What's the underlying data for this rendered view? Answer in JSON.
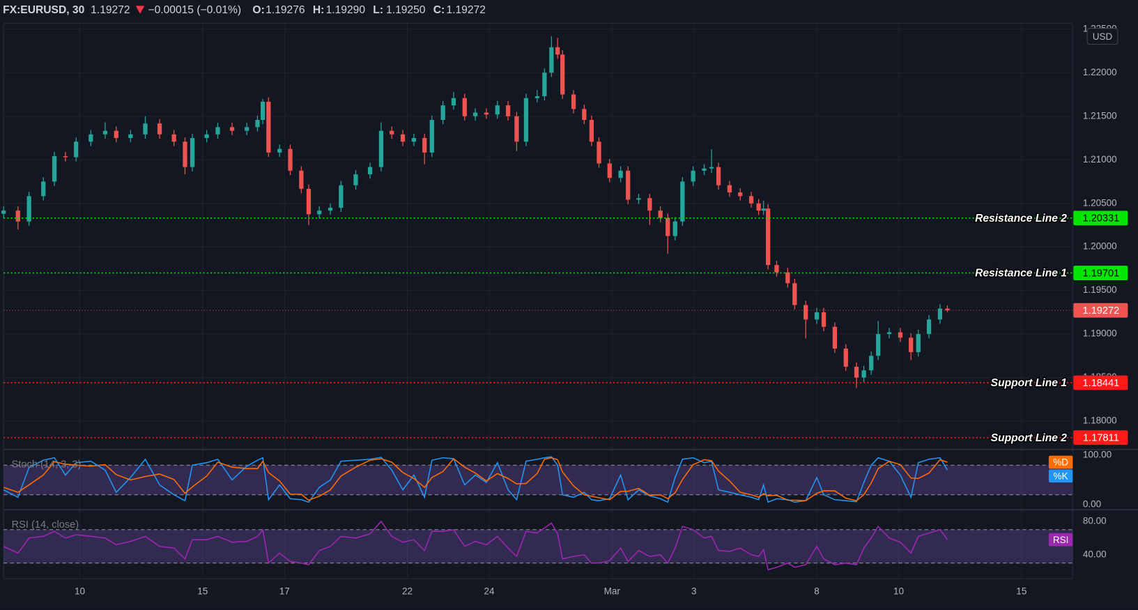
{
  "chart_data": [
    {
      "type": "candlestick",
      "title": "FX:EURUSD, 30",
      "last": 1.19272,
      "change": "−0.00015 (−0.01%)",
      "ohlc": [
        {
          "key": "O:",
          "value": 1.19276
        },
        {
          "key": "H:",
          "value": {
            "value": 1.1929,
            "label": "1.19290"
          }
        },
        {
          "key": "L:",
          "value": {
            "value": 1.1925,
            "label": "1.19250"
          }
        },
        {
          "key": "C:",
          "value": 1.19272
        }
      ],
      "currency": "USD",
      "up_color": "#26a69a",
      "down_color": "#ef5350",
      "grid": true,
      "xlim": [
        -1.86,
        24.25
      ],
      "xticks": [
        {
          "value": 0,
          "label": "10"
        },
        {
          "value": 3,
          "label": "15"
        },
        {
          "value": 5,
          "label": "17"
        },
        {
          "value": 8,
          "label": "22"
        },
        {
          "value": 10,
          "label": "24"
        },
        {
          "value": 13,
          "label": "Mar"
        },
        {
          "value": 15,
          "label": "3"
        },
        {
          "value": 18,
          "label": "8"
        },
        {
          "value": 20,
          "label": "10"
        },
        {
          "value": 23,
          "label": "15"
        }
      ],
      "ylim": [
        1.17683,
        1.22567
      ],
      "yticks": [
        {
          "value": 1.18,
          "label": "1.18000"
        },
        {
          "value": 1.185,
          "label": "1.18500"
        },
        {
          "value": 1.19,
          "label": "1.19000"
        },
        {
          "value": 1.195,
          "label": "1.19500"
        },
        {
          "value": 1.2,
          "label": "1.20000"
        },
        {
          "value": 1.205,
          "label": "1.20500"
        },
        {
          "value": 1.21,
          "label": "1.21000"
        },
        {
          "value": 1.215,
          "label": "1.21500"
        },
        {
          "value": 1.22,
          "label": "1.22000"
        },
        {
          "value": 1.225,
          "label": "1.22500"
        }
      ],
      "price_lines": [
        {
          "name": "Resistance Line 2",
          "value": 1.20331,
          "color": "#00e600",
          "label_color": "#000000"
        },
        {
          "name": "Resistance Line 1",
          "value": 1.19701,
          "color": "#00e600",
          "label_color": "#000000"
        },
        {
          "value": 1.19272,
          "color": "#f05350",
          "label_color": "#ffffff"
        },
        {
          "name": "Support Line 1",
          "value": 1.18441,
          "color": "#ff1a1a",
          "label_color": "#ffffff"
        },
        {
          "name": "Support Line 2",
          "value": 1.17811,
          "color": "#ff1a1a",
          "label_color": "#ffffff"
        }
      ],
      "x": [
        -1.86,
        -1.51,
        -1.24,
        -0.89,
        -0.62,
        -0.35,
        -0.09,
        0.27,
        0.62,
        0.89,
        1.24,
        1.6,
        1.95,
        2.3,
        2.57,
        2.75,
        3.1,
        3.37,
        3.72,
        4.08,
        4.34,
        4.47,
        4.61,
        4.88,
        5.14,
        5.41,
        5.59,
        5.85,
        6.12,
        6.38,
        6.74,
        7.09,
        7.36,
        7.62,
        7.89,
        8.16,
        8.42,
        8.6,
        8.87,
        9.13,
        9.4,
        9.66,
        9.93,
        10.2,
        10.46,
        10.67,
        10.9,
        11.17,
        11.35,
        11.52,
        11.67,
        11.79,
        12.06,
        12.32,
        12.5,
        12.68,
        12.94,
        13.21,
        13.39,
        13.65,
        13.92,
        14.18,
        14.36,
        14.54,
        14.72,
        14.98,
        15.25,
        15.43,
        15.6,
        15.87,
        16.13,
        16.4,
        16.58,
        16.7,
        16.81,
        17.02,
        17.29,
        17.46,
        17.73,
        18.0,
        18.17,
        18.44,
        18.71,
        18.97,
        19.15,
        19.33,
        19.5,
        19.77,
        20.04,
        20.3,
        20.48,
        20.74,
        21.01,
        21.19
      ],
      "open": [
        1.2038,
        1.20417,
        1.20292,
        1.20583,
        1.2075,
        1.21042,
        1.2103,
        1.21208,
        1.21292,
        1.21333,
        1.2125,
        1.21292,
        1.21417,
        1.21292,
        1.21208,
        1.20917,
        1.2125,
        1.21292,
        1.21375,
        1.21333,
        1.21375,
        1.21458,
        1.21667,
        1.21083,
        1.21125,
        1.20875,
        1.20667,
        1.20375,
        1.20417,
        1.2045,
        1.20708,
        1.20833,
        1.20917,
        1.21333,
        1.21292,
        1.21208,
        1.2125,
        1.21083,
        1.21458,
        1.21625,
        1.21708,
        1.215,
        1.21542,
        1.2152,
        1.21625,
        1.215,
        1.21208,
        1.21708,
        1.2173,
        1.22,
        1.22292,
        1.22208,
        1.2175,
        1.21583,
        1.21458,
        1.21208,
        1.20958,
        1.20792,
        1.20875,
        1.20542,
        1.2056,
        1.20417,
        1.20333,
        1.20125,
        1.20292,
        1.2075,
        1.20875,
        1.209,
        1.20917,
        1.20708,
        1.20625,
        1.20583,
        1.205,
        1.20417,
        1.2044,
        1.19792,
        1.19708,
        1.19583,
        1.19333,
        1.19167,
        1.1925,
        1.19083,
        1.18833,
        1.18625,
        1.185,
        1.18583,
        1.1875,
        1.19,
        1.1902,
        1.18958,
        1.18792,
        1.19,
        1.19167,
        1.19292
      ],
      "high": [
        1.20467,
        1.20467,
        1.20633,
        1.208,
        1.21092,
        1.21092,
        1.21258,
        1.21342,
        1.2143,
        1.21383,
        1.21342,
        1.215,
        1.21467,
        1.21342,
        1.21258,
        1.213,
        1.21342,
        1.21425,
        1.21425,
        1.21425,
        1.21508,
        1.217,
        1.21717,
        1.21175,
        1.21175,
        1.20925,
        1.20717,
        1.20467,
        1.205,
        1.20758,
        1.20883,
        1.20967,
        1.2143,
        1.21383,
        1.21342,
        1.213,
        1.213,
        1.21508,
        1.21675,
        1.2178,
        1.21758,
        1.21592,
        1.21592,
        1.21675,
        1.21675,
        1.2155,
        1.21758,
        1.218,
        1.2205,
        1.2242,
        1.224,
        1.22258,
        1.218,
        1.21633,
        1.21508,
        1.21258,
        1.21008,
        1.20925,
        1.20925,
        1.2061,
        1.2061,
        1.20467,
        1.20383,
        1.20342,
        1.208,
        1.20925,
        1.2095,
        1.2112,
        1.20967,
        1.20758,
        1.20675,
        1.20633,
        1.2055,
        1.2053,
        1.2049,
        1.19842,
        1.19758,
        1.19633,
        1.19383,
        1.193,
        1.193,
        1.19133,
        1.18883,
        1.18675,
        1.18633,
        1.188,
        1.1915,
        1.1907,
        1.1907,
        1.19008,
        1.1905,
        1.19217,
        1.19342,
        1.1933
      ],
      "low": [
        1.2033,
        1.202,
        1.20242,
        1.20533,
        1.207,
        1.2098,
        1.2098,
        1.21158,
        1.21242,
        1.212,
        1.212,
        1.21242,
        1.21242,
        1.21158,
        1.20833,
        1.20867,
        1.212,
        1.21242,
        1.21283,
        1.21283,
        1.21325,
        1.21408,
        1.21033,
        1.21033,
        1.20825,
        1.20617,
        1.2025,
        1.20325,
        1.20367,
        1.204,
        1.20658,
        1.20783,
        1.20867,
        1.21242,
        1.21158,
        1.21158,
        1.2095,
        1.21033,
        1.21408,
        1.21575,
        1.2145,
        1.2145,
        1.2147,
        1.2147,
        1.2145,
        1.211,
        1.21158,
        1.21658,
        1.2168,
        1.2195,
        1.22158,
        1.217,
        1.21533,
        1.21408,
        1.21158,
        1.20908,
        1.20742,
        1.20742,
        1.20492,
        1.20492,
        1.2025,
        1.20283,
        1.1992,
        1.20075,
        1.20242,
        1.207,
        1.20825,
        1.2085,
        1.20658,
        1.20575,
        1.20533,
        1.2045,
        1.20367,
        1.20367,
        1.19742,
        1.19658,
        1.19533,
        1.19283,
        1.1895,
        1.19117,
        1.19033,
        1.18783,
        1.18575,
        1.1838,
        1.1845,
        1.18533,
        1.187,
        1.1895,
        1.18908,
        1.187,
        1.18742,
        1.1895,
        1.19117,
        1.1925
      ],
      "close": [
        1.20417,
        1.20292,
        1.20583,
        1.2075,
        1.21042,
        1.2103,
        1.21208,
        1.21292,
        1.21333,
        1.2125,
        1.21292,
        1.21417,
        1.21292,
        1.21208,
        1.20917,
        1.2125,
        1.21292,
        1.21375,
        1.21333,
        1.21375,
        1.21458,
        1.21667,
        1.21083,
        1.21125,
        1.20875,
        1.20667,
        1.20375,
        1.20417,
        1.2045,
        1.20708,
        1.20833,
        1.20917,
        1.21333,
        1.21292,
        1.21208,
        1.2125,
        1.21083,
        1.21458,
        1.21625,
        1.21708,
        1.215,
        1.21542,
        1.2152,
        1.21625,
        1.215,
        1.21208,
        1.21708,
        1.2173,
        1.22,
        1.22292,
        1.22208,
        1.2175,
        1.21583,
        1.21458,
        1.21208,
        1.20958,
        1.20792,
        1.20875,
        1.20542,
        1.2056,
        1.20417,
        1.20333,
        1.20125,
        1.20292,
        1.2075,
        1.20875,
        1.209,
        1.20917,
        1.20708,
        1.20625,
        1.20583,
        1.205,
        1.20417,
        1.2044,
        1.19792,
        1.19708,
        1.19583,
        1.19333,
        1.19167,
        1.1925,
        1.19083,
        1.18833,
        1.18625,
        1.185,
        1.18583,
        1.1875,
        1.19,
        1.1902,
        1.18958,
        1.18792,
        1.19,
        1.19167,
        1.19292,
        1.19272
      ]
    },
    {
      "type": "line",
      "title": "Stoch (14, 3, 3)",
      "grid": false,
      "ylim": [
        -7.4,
        110.3
      ],
      "yticks": [
        {
          "value": 0,
          "label": "0.00"
        },
        {
          "value": 100,
          "label": "100.00"
        }
      ],
      "bands": [
        20,
        80
      ],
      "band_color": "#7e57c2",
      "series": [
        {
          "name": "%K",
          "color": "#2196f3",
          "values": [
            30,
            15,
            75,
            90,
            95,
            60,
            85,
            88,
            70,
            25,
            55,
            92,
            40,
            20,
            8,
            80,
            85,
            92,
            50,
            78,
            90,
            95,
            10,
            40,
            12,
            10,
            5,
            35,
            50,
            88,
            90,
            92,
            96,
            70,
            30,
            60,
            15,
            90,
            95,
            93,
            40,
            60,
            45,
            85,
            30,
            10,
            88,
            92,
            95,
            97,
            80,
            20,
            15,
            25,
            10,
            8,
            12,
            60,
            10,
            30,
            18,
            12,
            5,
            55,
            92,
            95,
            85,
            88,
            30,
            25,
            20,
            15,
            10,
            40,
            5,
            12,
            10,
            5,
            8,
            55,
            20,
            10,
            8,
            6,
            45,
            80,
            95,
            88,
            60,
            15,
            85,
            92,
            95,
            70
          ]
        },
        {
          "name": "%D",
          "color": "#ff6d00",
          "values": [
            35,
            25,
            40,
            60,
            87,
            82,
            80,
            78,
            81,
            61,
            50,
            57,
            62,
            51,
            23,
            36,
            58,
            86,
            76,
            73,
            73,
            88,
            65,
            48,
            21,
            21,
            9,
            17,
            30,
            58,
            76,
            90,
            93,
            86,
            65,
            53,
            35,
            55,
            67,
            93,
            76,
            64,
            48,
            63,
            53,
            42,
            43,
            63,
            92,
            95,
            91,
            66,
            38,
            20,
            17,
            14,
            10,
            27,
            27,
            33,
            19,
            20,
            12,
            24,
            51,
            81,
            91,
            89,
            68,
            48,
            25,
            20,
            15,
            22,
            18,
            19,
            9,
            9,
            8,
            23,
            28,
            28,
            13,
            8,
            20,
            44,
            73,
            88,
            81,
            54,
            53,
            64,
            91,
            86
          ]
        }
      ]
    },
    {
      "type": "line",
      "title": "RSI (14, close)",
      "grid": false,
      "ylim": [
        11.3,
        93
      ],
      "yticks": [
        {
          "value": 40,
          "label": "40.00"
        },
        {
          "value": 80,
          "label": "80.00"
        }
      ],
      "bands": [
        30,
        70
      ],
      "band_color": "#7e57c2",
      "series": [
        {
          "name": "RSI",
          "color": "#9c27b0",
          "values": [
            50,
            42,
            60,
            62,
            68,
            60,
            64,
            62,
            60,
            52,
            56,
            62,
            50,
            48,
            35,
            58,
            58,
            62,
            55,
            56,
            62,
            70,
            30,
            42,
            32,
            30,
            28,
            45,
            50,
            62,
            60,
            65,
            80,
            62,
            55,
            58,
            45,
            68,
            68,
            70,
            50,
            56,
            52,
            62,
            48,
            38,
            68,
            66,
            72,
            78,
            65,
            35,
            38,
            40,
            30,
            30,
            33,
            48,
            32,
            45,
            38,
            40,
            30,
            48,
            74,
            70,
            60,
            62,
            45,
            44,
            48,
            40,
            38,
            46,
            22,
            25,
            30,
            25,
            28,
            50,
            35,
            28,
            30,
            28,
            48,
            60,
            74,
            60,
            55,
            42,
            62,
            66,
            70,
            58
          ]
        }
      ]
    }
  ]
}
